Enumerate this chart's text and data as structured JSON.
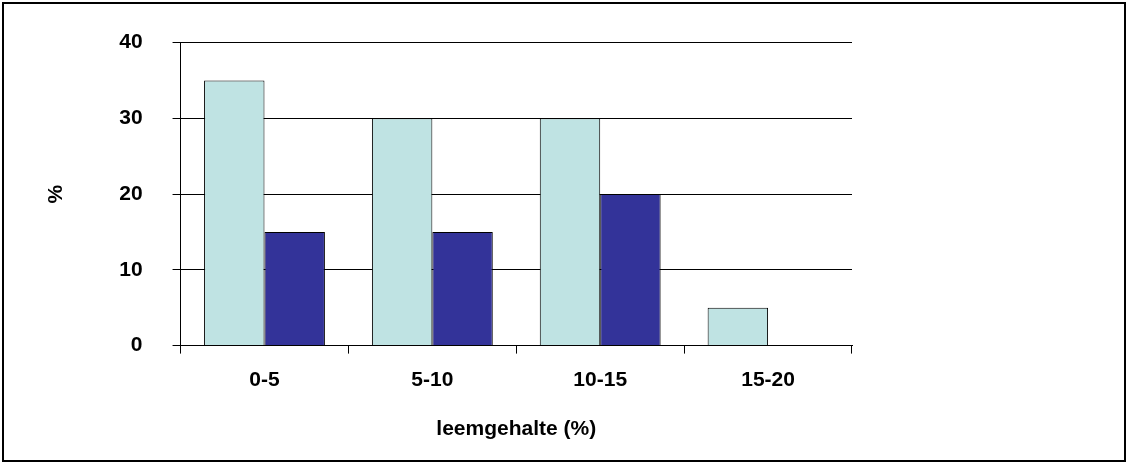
{
  "chart_data": {
    "type": "bar",
    "xlabel": "leemgehalte (%)",
    "ylabel": "%",
    "categories": [
      "0-5",
      "5-10",
      "10-15",
      "15-20"
    ],
    "series": [
      {
        "color": "#bfe3e3",
        "values": [
          35,
          30,
          30,
          5
        ]
      },
      {
        "color": "#333399",
        "values": [
          15,
          15,
          20,
          0
        ]
      }
    ],
    "ylim": [
      0,
      40
    ],
    "yticks": [
      0,
      10,
      20,
      30,
      40
    ],
    "grid": "y",
    "legend": false
  }
}
